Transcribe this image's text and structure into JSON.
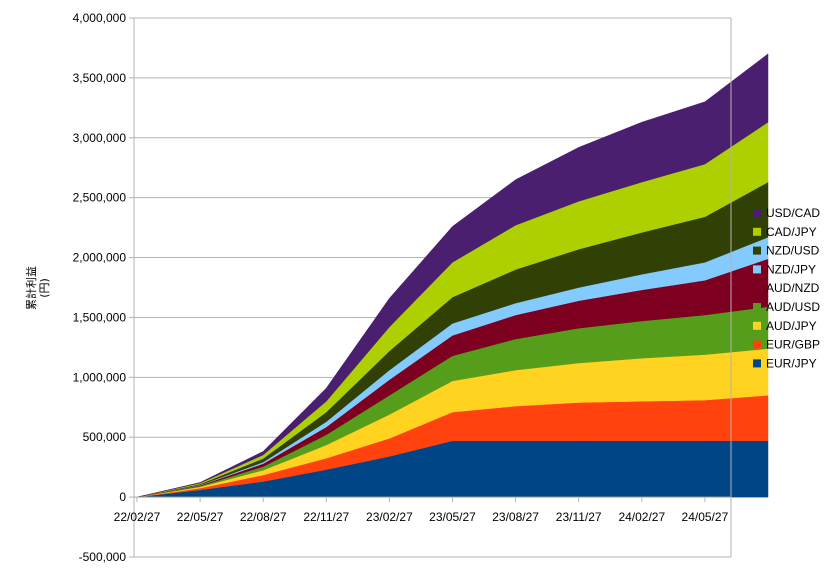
{
  "chart_data": {
    "type": "area",
    "stacked": true,
    "ylabel": "累計利益\n(円)",
    "ylim": [
      -500000,
      4000000
    ],
    "y_ticks": [
      "-500,000",
      "0",
      "500,000",
      "1,000,000",
      "1,500,000",
      "2,000,000",
      "2,500,000",
      "3,000,000",
      "3,500,000",
      "4,000,000"
    ],
    "x_ticks": [
      "22/02/27",
      "22/05/27",
      "22/08/27",
      "22/11/27",
      "23/02/27",
      "23/05/27",
      "23/08/27",
      "23/11/27",
      "24/02/27",
      "24/05/27"
    ],
    "grid": "horizontal",
    "legend_position": "right",
    "x": [
      "22/02/27",
      "22/05/27",
      "22/08/27",
      "22/11/27",
      "23/02/27",
      "23/05/27",
      "23/08/27",
      "23/11/27",
      "24/02/27",
      "24/05/27",
      "24/07/27"
    ],
    "series": [
      {
        "name": "EUR/JPY",
        "color": "#004586",
        "values": [
          0,
          60000,
          130000,
          230000,
          340000,
          470000,
          470000,
          470000,
          470000,
          470000,
          470000
        ]
      },
      {
        "name": "EUR/GBP",
        "color": "#ff420e",
        "values": [
          0,
          15000,
          55000,
          95000,
          150000,
          240000,
          290000,
          320000,
          330000,
          340000,
          380000
        ]
      },
      {
        "name": "AUD/JPY",
        "color": "#ffd320",
        "values": [
          0,
          10000,
          40000,
          110000,
          200000,
          260000,
          300000,
          330000,
          360000,
          380000,
          390000
        ]
      },
      {
        "name": "AUD/USD",
        "color": "#579d1c",
        "values": [
          0,
          8000,
          30000,
          85000,
          160000,
          210000,
          260000,
          290000,
          310000,
          330000,
          350000
        ]
      },
      {
        "name": "AUD/NZD",
        "color": "#7e0021",
        "values": [
          0,
          5000,
          25000,
          65000,
          130000,
          170000,
          200000,
          230000,
          260000,
          290000,
          400000
        ]
      },
      {
        "name": "NZD/JPY",
        "color": "#83caff",
        "values": [
          0,
          3000,
          12000,
          45000,
          80000,
          100000,
          100000,
          110000,
          130000,
          150000,
          180000
        ]
      },
      {
        "name": "NZD/USD",
        "color": "#314004",
        "values": [
          0,
          8000,
          30000,
          80000,
          160000,
          220000,
          280000,
          320000,
          350000,
          380000,
          460000
        ]
      },
      {
        "name": "CAD/JPY",
        "color": "#aecf00",
        "values": [
          0,
          8000,
          30000,
          90000,
          200000,
          290000,
          370000,
          400000,
          420000,
          440000,
          500000
        ]
      },
      {
        "name": "USD/CAD",
        "color": "#4b1f6f",
        "values": [
          0,
          5000,
          30000,
          110000,
          240000,
          300000,
          380000,
          450000,
          500000,
          520000,
          570000
        ]
      }
    ]
  }
}
